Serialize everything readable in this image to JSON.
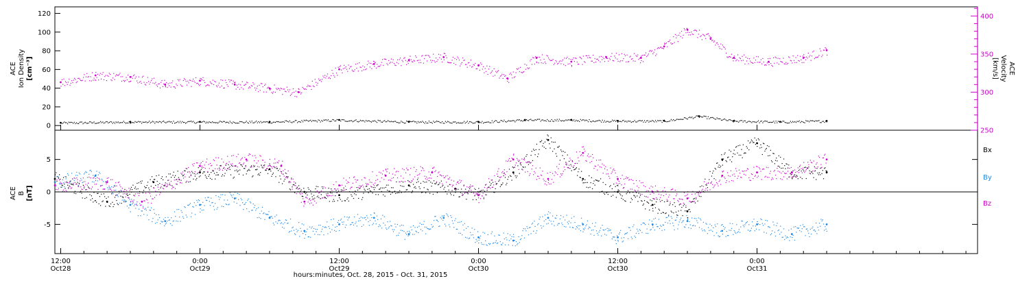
{
  "xaxis": {
    "start": "2015-10-28T11:30",
    "end": "2015-10-31T19:00",
    "ticks": [
      {
        "t": "2015-10-28T12:00",
        "time": "12:00",
        "date": "Oct28"
      },
      {
        "t": "2015-10-29T00:00",
        "time": "0:00",
        "date": "Oct29"
      },
      {
        "t": "2015-10-29T12:00",
        "time": "12:00",
        "date": "Oct29"
      },
      {
        "t": "2015-10-30T00:00",
        "time": "0:00",
        "date": "Oct30"
      },
      {
        "t": "2015-10-30T12:00",
        "time": "12:00",
        "date": "Oct30"
      },
      {
        "t": "2015-10-31T00:00",
        "time": "0:00",
        "date": "Oct31"
      }
    ],
    "label": "hours:minutes, Oct. 28, 2015 - Oct. 31, 2015"
  },
  "colors": {
    "black": "#000000",
    "magenta": "#cc00cc",
    "blue": "#1e88e5"
  },
  "chart_data": [
    {
      "type": "scatter",
      "panel": "top",
      "ylabel_left": [
        "ACE",
        "Ion Density",
        "[cm⁻³]"
      ],
      "ylabel_right": [
        "ACE",
        "Velocity",
        "[km/s]"
      ],
      "ylim_left": [
        -5,
        127
      ],
      "ylim_right": [
        250,
        412
      ],
      "yticks_left": [
        0,
        20,
        40,
        60,
        80,
        100,
        120
      ],
      "yticks_right": [
        250,
        300,
        350,
        400
      ],
      "series": [
        {
          "axis": "left",
          "color": "#000000",
          "x": [
            "2015-10-28T12:00",
            "2015-10-28T18:00",
            "2015-10-29T00:00",
            "2015-10-29T06:00",
            "2015-10-29T12:00",
            "2015-10-29T18:00",
            "2015-10-30T00:00",
            "2015-10-30T04:00",
            "2015-10-30T08:00",
            "2015-10-30T12:00",
            "2015-10-30T16:00",
            "2015-10-30T19:00",
            "2015-10-30T22:00",
            "2015-10-31T02:00",
            "2015-10-31T06:00"
          ],
          "y": [
            3,
            4,
            4,
            4,
            6,
            4,
            4,
            6,
            6,
            5,
            5,
            10,
            5,
            4,
            5
          ]
        },
        {
          "axis": "right",
          "color": "#cc00cc",
          "x": [
            "2015-10-28T12:00",
            "2015-10-28T15:00",
            "2015-10-28T18:00",
            "2015-10-28T21:00",
            "2015-10-29T00:00",
            "2015-10-29T03:00",
            "2015-10-29T06:00",
            "2015-10-29T08:30",
            "2015-10-29T12:00",
            "2015-10-29T15:00",
            "2015-10-29T18:00",
            "2015-10-29T21:00",
            "2015-10-30T00:00",
            "2015-10-30T02:30",
            "2015-10-30T05:00",
            "2015-10-30T08:00",
            "2015-10-30T11:00",
            "2015-10-30T14:00",
            "2015-10-30T16:00",
            "2015-10-30T18:00",
            "2015-10-30T20:00",
            "2015-10-30T22:00",
            "2015-10-31T01:00",
            "2015-10-31T04:00",
            "2015-10-31T06:00"
          ],
          "y": [
            313,
            322,
            320,
            310,
            315,
            310,
            305,
            300,
            330,
            337,
            342,
            346,
            335,
            318,
            345,
            340,
            346,
            345,
            360,
            382,
            370,
            345,
            340,
            345,
            355
          ]
        }
      ]
    },
    {
      "type": "scatter",
      "panel": "bottom",
      "ylabel_left": [
        "ACE",
        "B",
        "[nT]"
      ],
      "ylim": [
        -9.5,
        9.5
      ],
      "yticks": [
        -5,
        0,
        5
      ],
      "legend": [
        {
          "label": "Bx",
          "color": "#000000"
        },
        {
          "label": "By",
          "color": "#1e88e5"
        },
        {
          "label": "Bz",
          "color": "#cc00cc"
        }
      ],
      "series": [
        {
          "name": "Bx",
          "color": "#000000",
          "x": [
            "2015-10-28T11:30",
            "2015-10-28T16:00",
            "2015-10-28T20:00",
            "2015-10-29T00:00",
            "2015-10-29T06:00",
            "2015-10-29T09:00",
            "2015-10-29T12:00",
            "2015-10-29T18:00",
            "2015-10-29T22:00",
            "2015-10-30T00:00",
            "2015-10-30T03:00",
            "2015-10-30T06:00",
            "2015-10-30T09:00",
            "2015-10-30T12:00",
            "2015-10-30T15:00",
            "2015-10-30T18:00",
            "2015-10-30T21:00",
            "2015-10-31T00:00",
            "2015-10-31T03:00",
            "2015-10-31T06:00"
          ],
          "y": [
            2,
            -1.5,
            1.5,
            3,
            3.5,
            0,
            -0.5,
            1,
            0.5,
            -0.5,
            3,
            8,
            2,
            0,
            -2,
            -3,
            5,
            7.5,
            3,
            3
          ]
        },
        {
          "name": "By",
          "color": "#1e88e5",
          "x": [
            "2015-10-28T11:30",
            "2015-10-28T15:00",
            "2015-10-28T18:00",
            "2015-10-28T21:00",
            "2015-10-29T00:00",
            "2015-10-29T03:00",
            "2015-10-29T06:00",
            "2015-10-29T09:00",
            "2015-10-29T12:00",
            "2015-10-29T15:00",
            "2015-10-29T18:00",
            "2015-10-29T21:00",
            "2015-10-30T00:00",
            "2015-10-30T03:00",
            "2015-10-30T06:00",
            "2015-10-30T09:00",
            "2015-10-30T12:00",
            "2015-10-30T15:00",
            "2015-10-30T18:00",
            "2015-10-30T21:00",
            "2015-10-31T00:00",
            "2015-10-31T03:00",
            "2015-10-31T06:00"
          ],
          "y": [
            1.5,
            2.5,
            -2,
            -4.5,
            -2,
            -1,
            -4,
            -6,
            -5,
            -4,
            -6.5,
            -4,
            -7,
            -7.5,
            -4,
            -5,
            -7,
            -5,
            -4.5,
            -6,
            -5,
            -6.5,
            -5
          ]
        },
        {
          "name": "Bz",
          "color": "#cc00cc",
          "x": [
            "2015-10-28T11:30",
            "2015-10-28T16:00",
            "2015-10-28T19:00",
            "2015-10-29T00:00",
            "2015-10-29T04:00",
            "2015-10-29T07:00",
            "2015-10-29T09:00",
            "2015-10-29T12:00",
            "2015-10-29T16:00",
            "2015-10-29T20:00",
            "2015-10-30T00:00",
            "2015-10-30T03:00",
            "2015-10-30T06:00",
            "2015-10-30T09:00",
            "2015-10-30T12:00",
            "2015-10-30T15:00",
            "2015-10-30T18:00",
            "2015-10-30T21:00",
            "2015-10-31T00:00",
            "2015-10-31T03:00",
            "2015-10-31T06:00"
          ],
          "y": [
            1,
            1.5,
            -1.5,
            4,
            5,
            4,
            -1.5,
            1,
            2.5,
            3,
            -0.5,
            5,
            2,
            6,
            2,
            0,
            -1,
            2.5,
            3,
            3,
            5
          ]
        }
      ]
    }
  ]
}
